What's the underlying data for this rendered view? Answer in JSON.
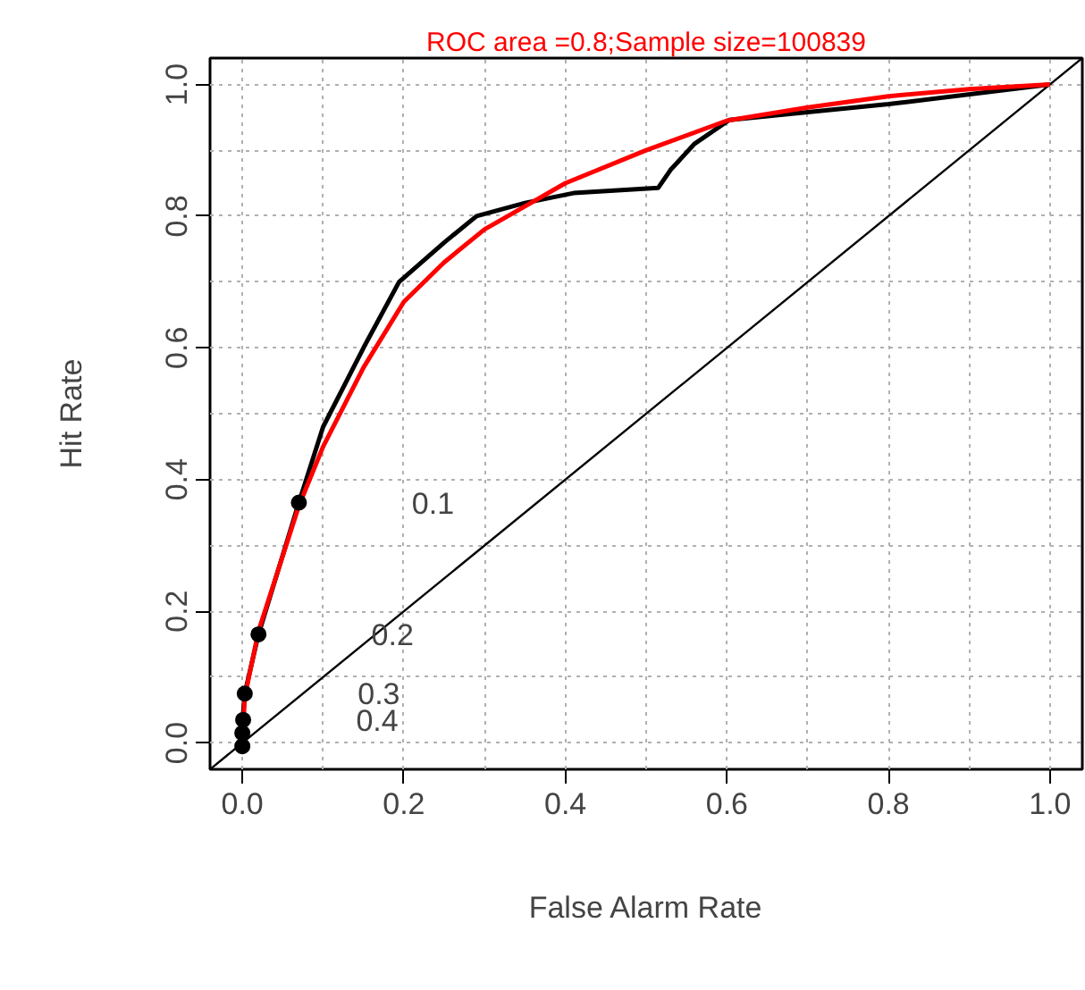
{
  "chart_data": {
    "type": "line",
    "title": "ROC area =0.8;Sample size=100839",
    "xlabel": "False Alarm Rate",
    "ylabel": "Hit Rate",
    "xlim": [
      -0.04,
      1.04
    ],
    "ylim": [
      -0.04,
      1.04
    ],
    "xticks": [
      {
        "value": 0,
        "label": "0.0"
      },
      0.2,
      0.4,
      0.6,
      0.8,
      {
        "value": 1,
        "label": "1.0"
      }
    ],
    "yticks": [
      {
        "value": 0,
        "label": "0.0"
      },
      0.2,
      0.4,
      0.6,
      0.8,
      {
        "value": 1,
        "label": "1.0"
      }
    ],
    "grid": true,
    "series": [
      {
        "color": "#000000",
        "x": [
          -0.04,
          1.04
        ],
        "values": [
          -0.04,
          1.04
        ]
      },
      {
        "color": "#000000",
        "x": [
          0,
          0,
          0.003,
          0.02,
          0.07,
          0.1,
          0.15,
          0.194,
          0.25,
          0.29,
          0.35,
          0.41,
          0.515,
          0.53,
          0.56,
          0.603,
          0.8,
          1
        ],
        "values": [
          0,
          0.03,
          0.075,
          0.165,
          0.365,
          0.48,
          0.6,
          0.7,
          0.76,
          0.8,
          0.82,
          0.835,
          0.843,
          0.87,
          0.91,
          0.946,
          0.97,
          1
        ]
      },
      {
        "color": "#ff0000",
        "x": [
          0,
          0.003,
          0.02,
          0.07,
          0.1,
          0.15,
          0.2,
          0.25,
          0.3,
          0.35,
          0.4,
          0.5,
          0.6,
          0.7,
          0.8,
          0.9,
          1
        ],
        "values": [
          0,
          0.07,
          0.17,
          0.36,
          0.45,
          0.57,
          0.67,
          0.73,
          0.78,
          0.815,
          0.85,
          0.9,
          0.945,
          0.965,
          0.982,
          0.993,
          1
        ]
      },
      {
        "type": "scatter",
        "color": "#000000",
        "marker": "circle",
        "x": [
          0.07,
          0.02,
          0.003,
          0.001,
          0,
          0
        ],
        "values": [
          0.365,
          0.165,
          0.075,
          0.035,
          0.015,
          -0.005
        ]
      }
    ],
    "annotations": [
      "0.1",
      "0.2",
      "0.3",
      "0.4"
    ]
  }
}
